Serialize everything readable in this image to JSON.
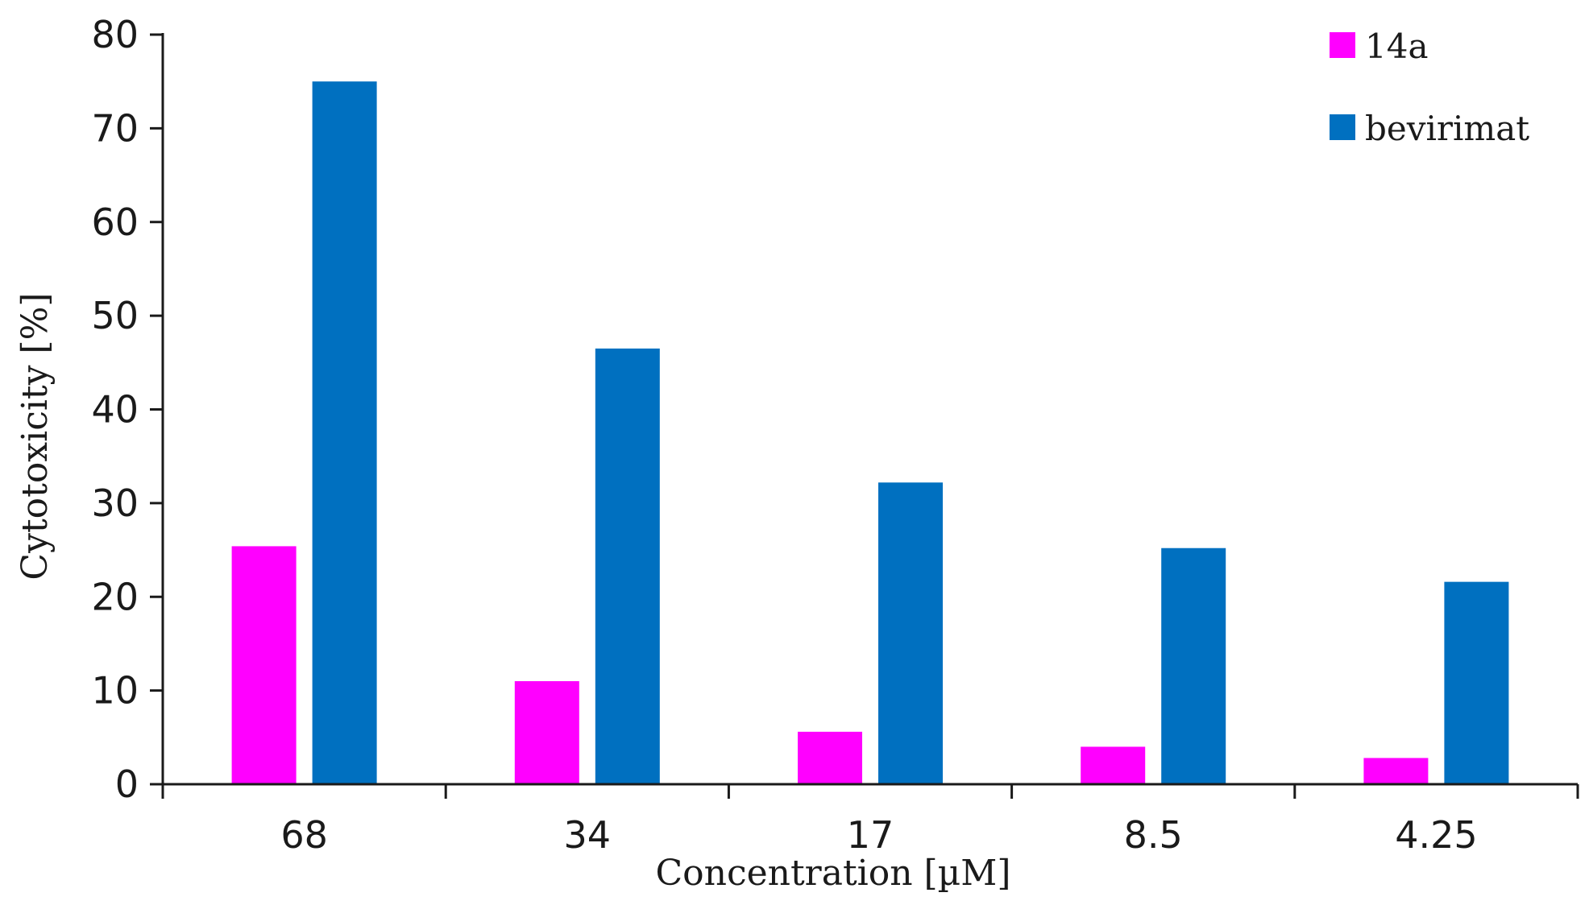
{
  "chart_data": {
    "type": "bar",
    "categories": [
      "68",
      "34",
      "17",
      "8.5",
      "4.25"
    ],
    "series": [
      {
        "name": "14a",
        "color": "#ff00ff",
        "values": [
          25.4,
          11.0,
          5.6,
          4.0,
          2.8
        ]
      },
      {
        "name": "bevirimat",
        "color": "#0070c0",
        "values": [
          75.0,
          46.5,
          32.2,
          25.2,
          21.6
        ]
      }
    ],
    "title": "",
    "xlabel": "Concentration [µM]",
    "ylabel": "Cytotoxicity [%]",
    "ylim": [
      0,
      80
    ],
    "yticks": [
      "0",
      "10",
      "20",
      "30",
      "40",
      "50",
      "60",
      "70",
      "80"
    ],
    "grid": false,
    "legend_position": "top-right"
  }
}
